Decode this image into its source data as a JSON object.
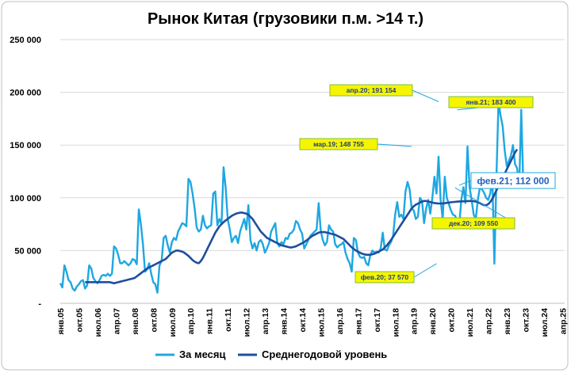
{
  "chart_data": {
    "type": "line",
    "title": "Рынок Китая (грузовики п.м. >14 т.)",
    "ylim": [
      0,
      250000
    ],
    "y_ticks": [
      "-",
      "50 000",
      "100 000",
      "150 000",
      "200 000",
      "250 000"
    ],
    "x_ticks": [
      "янв.05",
      "окт.05",
      "июл.06",
      "апр.07",
      "янв.08",
      "окт.08",
      "июл.09",
      "апр.10",
      "янв.11",
      "окт.11",
      "июл.12",
      "апр.13",
      "янв.14",
      "окт.14",
      "июл.15",
      "апр.16",
      "янв.17",
      "окт.17",
      "июл.18",
      "апр.19",
      "янв.20",
      "окт.20",
      "июл.21",
      "апр.22",
      "янв.23",
      "окт.23",
      "июл.24",
      "апр.25"
    ],
    "x_start": "янв.05",
    "x_end": "апр.25",
    "grid": "horizontal",
    "legend_position": "bottom",
    "series": [
      {
        "name": "За месяц",
        "color": "#1ea7e1",
        "values": [
          19000,
          15000,
          36000,
          30000,
          22000,
          20000,
          14000,
          12000,
          16000,
          18000,
          21000,
          22000,
          14000,
          17000,
          36000,
          33000,
          24000,
          21000,
          19000,
          22000,
          26000,
          27000,
          26000,
          28000,
          26000,
          28000,
          54000,
          52000,
          46000,
          38000,
          38000,
          40000,
          38000,
          36000,
          38000,
          42000,
          41000,
          37000,
          89000,
          75000,
          56000,
          30000,
          32000,
          38000,
          28000,
          20000,
          18000,
          10000,
          36000,
          40000,
          62000,
          64000,
          55000,
          48000,
          58000,
          62000,
          60000,
          68000,
          72000,
          76000,
          75000,
          73000,
          118000,
          115000,
          104000,
          90000,
          72000,
          68000,
          70000,
          83000,
          74000,
          71000,
          73000,
          74000,
          104000,
          106000,
          74000,
          80000,
          75000,
          129000,
          110000,
          80000,
          70000,
          58000,
          62000,
          64000,
          57000,
          68000,
          74000,
          80000,
          70000,
          93000,
          60000,
          52000,
          57000,
          50000,
          58000,
          60000,
          56000,
          48000,
          52000,
          57000,
          68000,
          72000,
          76000,
          57000,
          54000,
          58000,
          56000,
          62000,
          61000,
          66000,
          67000,
          70000,
          78000,
          76000,
          70000,
          66000,
          52000,
          56000,
          60000,
          64000,
          66000,
          68000,
          70000,
          95000,
          69000,
          60000,
          55000,
          58000,
          74000,
          70000,
          68000,
          56000,
          53000,
          55000,
          56000,
          58000,
          48000,
          42000,
          38000,
          30000,
          62000,
          60000,
          48000,
          44000,
          43000,
          44000,
          38000,
          36000,
          46000,
          50000,
          48000,
          49000,
          48000,
          52000,
          67000,
          51000,
          50000,
          55000,
          58000,
          64000,
          84000,
          96000,
          82000,
          84000,
          80000,
          106000,
          115000,
          108000,
          90000,
          88000,
          80000,
          82000,
          100000,
          97000,
          76000,
          90000,
          98000,
          85000,
          100000,
          120000,
          104000,
          139000,
          98000,
          80000,
          120000,
          100000,
          94000,
          88000,
          84000,
          83000,
          78000,
          74000,
          98000,
          110000,
          95000,
          148755,
          110000,
          98000,
          84000,
          80000,
          98000,
          110000,
          108000,
          105000,
          100000,
          98000,
          104000,
          120000,
          37570,
          120000,
          191154,
          178000,
          168000,
          145000,
          130000,
          135000,
          140000,
          150000,
          132000,
          128000,
          109550,
          183400,
          112000
        ]
      },
      {
        "name": "Среднегодовой уровень",
        "color": "#1f4e9c",
        "values": [
          20000,
          20000,
          20000,
          20000,
          20000,
          20000,
          20000,
          20000,
          20000,
          20000,
          20000,
          20000,
          20000,
          19500,
          19000,
          19500,
          20000,
          20500,
          21000,
          21500,
          22000,
          22500,
          23000,
          23500,
          24000,
          25500,
          27000,
          28500,
          30000,
          31500,
          33000,
          34000,
          35000,
          36000,
          37000,
          38000,
          39000,
          40000,
          41000,
          42000,
          44000,
          46000,
          48000,
          49000,
          50000,
          50000,
          49500,
          49000,
          48000,
          46500,
          45000,
          43000,
          41000,
          39500,
          38500,
          38000,
          40000,
          43000,
          47000,
          51000,
          55000,
          59000,
          63000,
          67000,
          70000,
          73000,
          75000,
          77000,
          78500,
          80000,
          81500,
          83000,
          84000,
          85000,
          85500,
          86000,
          86000,
          85500,
          85000,
          84000,
          82000,
          80000,
          77000,
          74000,
          71000,
          68000,
          66000,
          64000,
          62000,
          61000,
          60000,
          59000,
          58000,
          57000,
          56000,
          55000,
          54500,
          54000,
          53500,
          53000,
          53000,
          53500,
          54000,
          55000,
          56000,
          57000,
          58000,
          59500,
          61000,
          62500,
          64000,
          65000,
          66000,
          67000,
          67500,
          67500,
          67500,
          67000,
          66500,
          66000,
          65500,
          65000,
          64000,
          63000,
          62000,
          61000,
          59000,
          57000,
          55000,
          53000,
          51500,
          50000,
          49000,
          48000,
          47000,
          46500,
          46000,
          46000,
          46000,
          46500,
          47000,
          48000,
          49000,
          50000,
          51000,
          53000,
          55000,
          57500,
          60000,
          63000,
          66000,
          69000,
          72000,
          75000,
          78000,
          81000,
          84000,
          87000,
          90000,
          92000,
          93500,
          94500,
          95500,
          96500,
          97000,
          97000,
          96500,
          96000,
          95500,
          95000,
          94800,
          94600,
          94600,
          94700,
          94900,
          95200,
          95500,
          95800,
          96000,
          96200,
          96400,
          96500,
          96600,
          96700,
          96800,
          96900,
          97000,
          97000,
          96800,
          96500,
          96000,
          95000,
          94000,
          93000,
          93000,
          94000,
          96000,
          99000,
          103000,
          107000,
          111000,
          115000,
          119000,
          123000,
          127000,
          131000,
          135000,
          139000,
          143000,
          146000
        ],
        "start_index": 12
      }
    ],
    "annotations": [
      {
        "label": "апр.20;  191 154",
        "style": "box"
      },
      {
        "label": "янв.21;  183 400",
        "style": "box"
      },
      {
        "label": "мар.19; 148 755",
        "style": "box"
      },
      {
        "label": "фев.21;  112 000",
        "style": "outline"
      },
      {
        "label": "дек.20;  109 550",
        "style": "box"
      },
      {
        "label": "фев.20; 37 570",
        "style": "box"
      }
    ]
  }
}
